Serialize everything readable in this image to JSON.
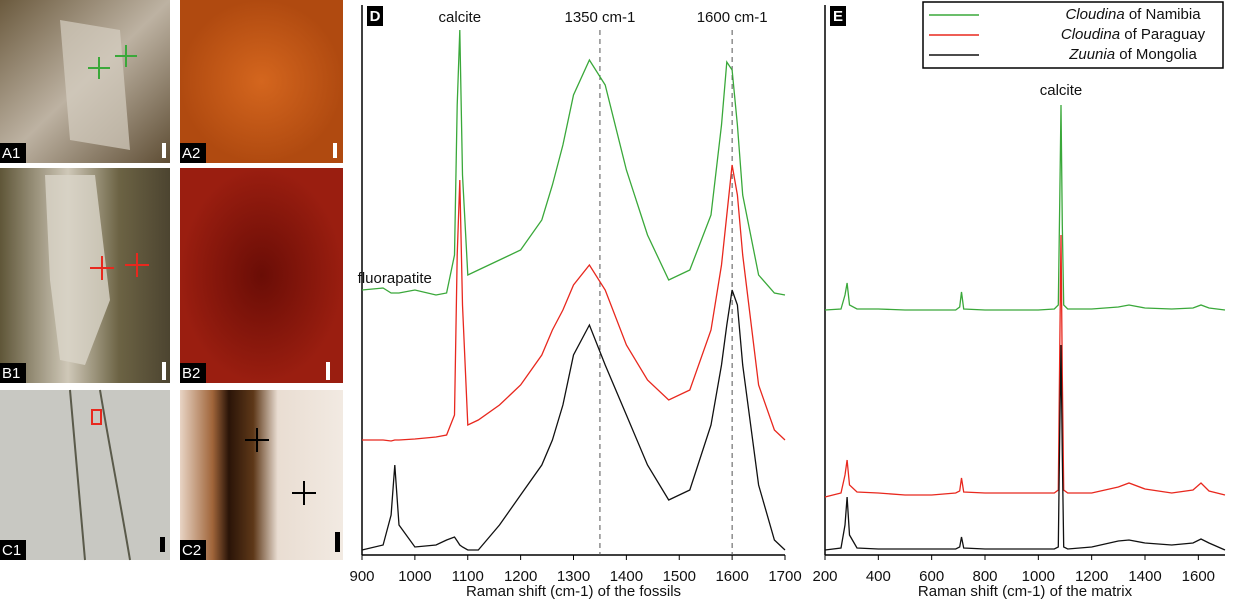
{
  "panels": [
    {
      "label": "A1"
    },
    {
      "label": "A2"
    },
    {
      "label": "B1"
    },
    {
      "label": "B2"
    },
    {
      "label": "C1"
    },
    {
      "label": "C2"
    }
  ],
  "chart_data": [
    {
      "type": "line",
      "panel": "D",
      "x_label": "Raman shift (cm-1) of the fossils",
      "x": [
        900,
        940,
        955,
        962,
        970,
        1000,
        1040,
        1060,
        1075,
        1080,
        1085,
        1090,
        1100,
        1120,
        1160,
        1200,
        1240,
        1260,
        1280,
        1300,
        1330,
        1360,
        1400,
        1440,
        1480,
        1520,
        1560,
        1580,
        1590,
        1600,
        1610,
        1620,
        1650,
        1680,
        1700
      ],
      "xlim": [
        900,
        1700
      ],
      "xticks": [
        900,
        1000,
        1100,
        1200,
        1300,
        1400,
        1500,
        1600,
        1700
      ],
      "ylim": [
        0,
        550
      ],
      "series": [
        {
          "name": "Cloudina of Namibia",
          "color": "#3aa83a",
          "values": [
            265,
            267,
            262,
            262,
            262,
            265,
            260,
            262,
            300,
            450,
            525,
            380,
            280,
            285,
            295,
            305,
            335,
            370,
            410,
            460,
            495,
            470,
            385,
            320,
            275,
            285,
            340,
            430,
            493,
            485,
            430,
            360,
            280,
            262,
            260
          ]
        },
        {
          "name": "Cloudina of Paraguay",
          "color": "#e8281e",
          "values": [
            115,
            115,
            114,
            115,
            115,
            116,
            118,
            120,
            140,
            300,
            375,
            250,
            130,
            135,
            150,
            170,
            200,
            225,
            245,
            270,
            290,
            265,
            210,
            175,
            155,
            165,
            225,
            290,
            340,
            390,
            360,
            300,
            170,
            125,
            115
          ]
        },
        {
          "name": "Zuunia of Mongolia",
          "color": "#111111",
          "values": [
            5,
            10,
            40,
            90,
            30,
            8,
            10,
            15,
            18,
            14,
            10,
            8,
            5,
            5,
            30,
            60,
            90,
            115,
            150,
            200,
            230,
            190,
            140,
            90,
            55,
            65,
            130,
            190,
            230,
            265,
            250,
            190,
            70,
            15,
            5
          ]
        }
      ],
      "annotations": [
        {
          "text": "calcite",
          "x": 1085
        },
        {
          "text": "1350 cm-1",
          "x": 1350,
          "dashed_line": true
        },
        {
          "text": "1600 cm-1",
          "x": 1600,
          "dashed_line": true
        },
        {
          "text": "fluorapatite",
          "x": 962
        }
      ]
    },
    {
      "type": "line",
      "panel": "E",
      "x_label": "Raman shift (cm-1) of the matrix",
      "legend": "top-right",
      "x": [
        200,
        260,
        275,
        283,
        292,
        320,
        400,
        500,
        600,
        690,
        705,
        712,
        720,
        800,
        900,
        1000,
        1060,
        1075,
        1080,
        1085,
        1090,
        1095,
        1110,
        1200,
        1300,
        1340,
        1400,
        1500,
        1580,
        1610,
        1640,
        1700
      ],
      "xlim": [
        200,
        1700
      ],
      "xticks": [
        200,
        400,
        600,
        800,
        1000,
        1200,
        1400,
        1600
      ],
      "ylim": [
        0,
        550
      ],
      "series": [
        {
          "name": "Cloudina of Namibia",
          "color": "#3aa83a",
          "values": [
            245,
            246,
            260,
            272,
            250,
            246,
            246,
            245,
            245,
            245,
            248,
            263,
            246,
            245,
            245,
            245,
            246,
            250,
            350,
            450,
            330,
            250,
            246,
            246,
            248,
            250,
            247,
            246,
            247,
            250,
            247,
            245
          ]
        },
        {
          "name": "Cloudina of Paraguay",
          "color": "#e8281e",
          "values": [
            58,
            62,
            80,
            95,
            70,
            63,
            62,
            60,
            60,
            62,
            64,
            77,
            63,
            62,
            62,
            62,
            62,
            65,
            200,
            320,
            180,
            65,
            62,
            62,
            68,
            72,
            66,
            62,
            65,
            72,
            64,
            60
          ]
        },
        {
          "name": "Zuunia of Mongolia",
          "color": "#111111",
          "values": [
            5,
            7,
            30,
            58,
            20,
            7,
            6,
            6,
            6,
            6,
            8,
            18,
            7,
            6,
            6,
            6,
            6,
            8,
            120,
            210,
            100,
            8,
            6,
            8,
            14,
            15,
            12,
            10,
            12,
            16,
            12,
            5
          ]
        }
      ],
      "annotations": [
        {
          "text": "calcite",
          "x": 1085
        }
      ]
    }
  ]
}
